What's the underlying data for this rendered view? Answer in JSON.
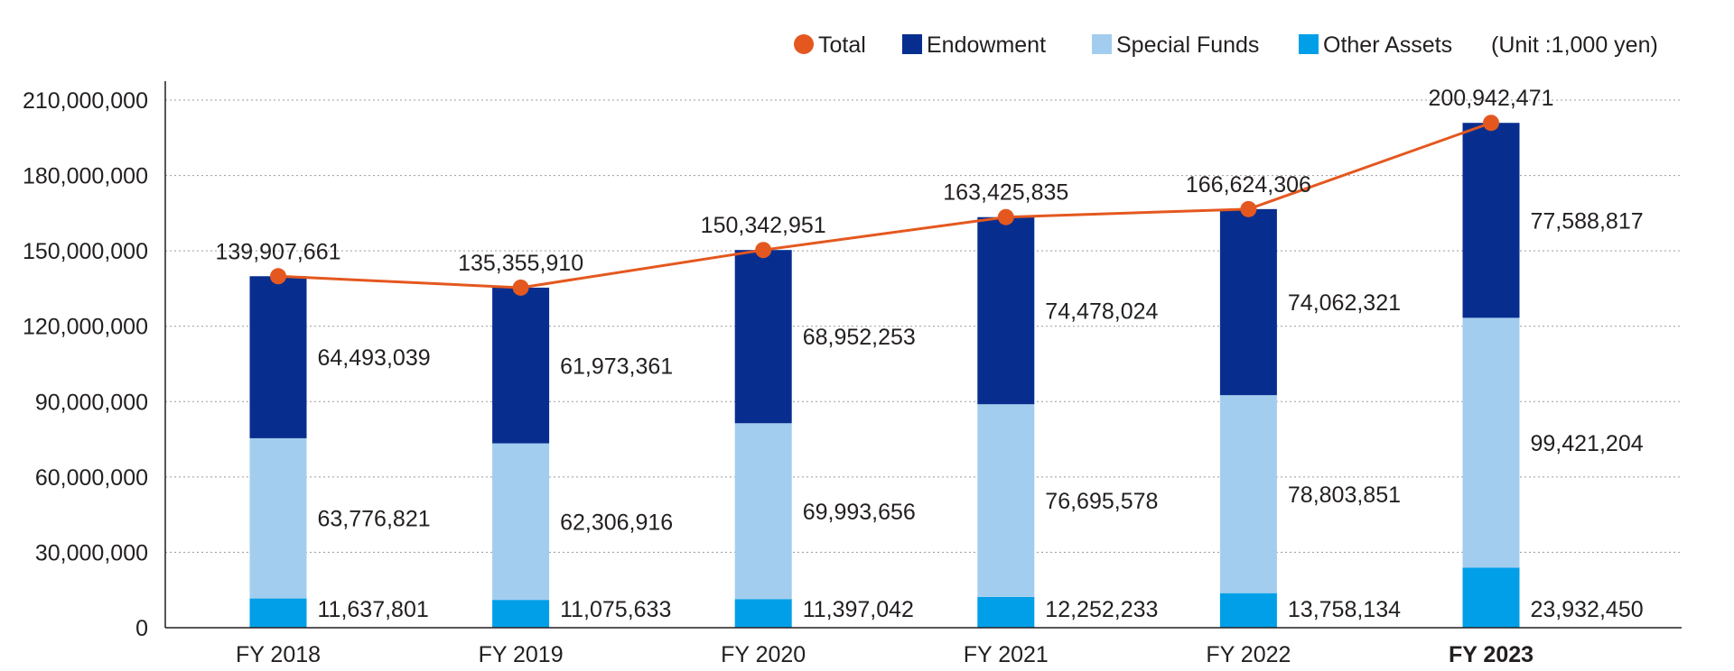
{
  "chart_data": {
    "type": "bar",
    "stacked": true,
    "title": "",
    "xlabel": "",
    "ylabel": "",
    "unit_note": "(Unit :1,000 yen)",
    "categories": [
      "FY 2018",
      "FY 2019",
      "FY 2020",
      "FY 2021",
      "FY 2022",
      "FY 2023"
    ],
    "highlight_category": "FY 2023",
    "ylim": [
      0,
      210000000
    ],
    "yticks": [
      0,
      30000000,
      60000000,
      90000000,
      120000000,
      150000000,
      180000000,
      210000000
    ],
    "ytick_labels": [
      "0",
      "30,000,000",
      "60,000,000",
      "90,000,000",
      "120,000,000",
      "150,000,000",
      "180,000,000",
      "210,000,000"
    ],
    "grid": true,
    "legend_position": "top-right",
    "series": [
      {
        "name": "Other Assets",
        "color": "#009fe8",
        "values": [
          11637801,
          11075633,
          11397042,
          12252233,
          13758134,
          23932450
        ],
        "labels": [
          "11,637,801",
          "11,075,633",
          "11,397,042",
          "12,252,233",
          "13,758,134",
          "23,932,450"
        ]
      },
      {
        "name": "Special Funds",
        "color": "#a3cdee",
        "values": [
          63776821,
          62306916,
          69993656,
          76695578,
          78803851,
          99421204
        ],
        "labels": [
          "63,776,821",
          "62,306,916",
          "69,993,656",
          "76,695,578",
          "78,803,851",
          "99,421,204"
        ]
      },
      {
        "name": "Endowment",
        "color": "#072e8f",
        "values": [
          64493039,
          61973361,
          68952253,
          74478024,
          74062321,
          77588817
        ],
        "labels": [
          "64,493,039",
          "61,973,361",
          "68,952,253",
          "74,478,024",
          "74,062,321",
          "77,588,817"
        ]
      }
    ],
    "total": {
      "name": "Total",
      "type": "line",
      "color": "#e4581f",
      "values": [
        139907661,
        135355910,
        150342951,
        163425835,
        166624306,
        200942471
      ],
      "labels": [
        "139,907,661",
        "135,355,910",
        "150,342,951",
        "163,425,835",
        "166,624,306",
        "200,942,471"
      ]
    },
    "legend": [
      {
        "name": "Total",
        "marker": "circle",
        "color": "#e4581f"
      },
      {
        "name": "Endowment",
        "marker": "square",
        "color": "#072e8f"
      },
      {
        "name": "Special Funds",
        "marker": "square",
        "color": "#a3cdee"
      },
      {
        "name": "Other Assets",
        "marker": "square",
        "color": "#009fe8"
      }
    ]
  }
}
